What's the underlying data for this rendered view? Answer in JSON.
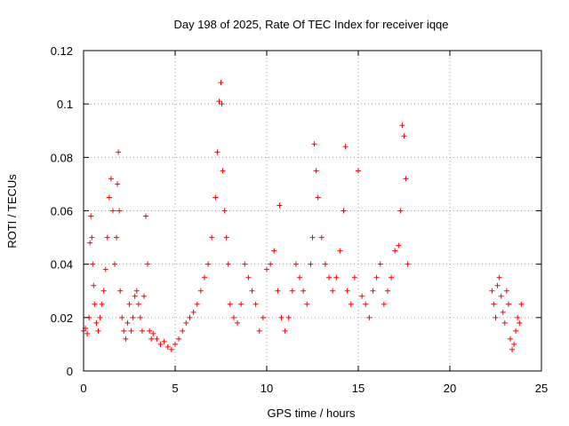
{
  "chart_data": {
    "type": "scatter",
    "title": "Day 198 of 2025, Rate Of TEC Index for receiver iqqe",
    "xlabel": "GPS time / hours",
    "ylabel": "ROTI / TECUs",
    "xlim": [
      0,
      25
    ],
    "ylim": [
      0,
      0.12
    ],
    "xticks": [
      0,
      5,
      10,
      15,
      20,
      25
    ],
    "xtick_labels": [
      "0",
      "5",
      "10",
      "15",
      "20",
      "25"
    ],
    "yticks": [
      0,
      0.02,
      0.04,
      0.06,
      0.08,
      0.1,
      0.12
    ],
    "ytick_labels": [
      "0",
      "0.02",
      "0.04",
      "0.06",
      "0.08",
      "0.1",
      "0.12"
    ],
    "grid": true,
    "legend": "none",
    "marker": "plus",
    "color": "#ff0000",
    "series": [
      {
        "x": [
          0.0,
          0.1,
          0.2,
          0.3,
          0.35,
          0.4,
          0.45,
          0.5,
          0.55,
          0.6,
          0.7,
          0.8,
          0.9,
          1.0,
          1.1,
          1.2,
          1.3,
          1.4,
          1.5,
          1.6,
          1.7,
          1.8,
          1.85,
          1.9,
          1.95,
          2.0,
          2.1,
          2.2,
          2.3,
          2.4,
          2.5,
          2.6,
          2.7,
          2.8,
          2.9,
          3.0,
          3.1,
          3.2,
          3.3,
          3.4,
          3.5,
          3.6,
          3.7,
          3.8,
          4.0,
          4.2,
          4.4,
          4.6,
          4.8,
          5.0,
          5.2,
          5.4,
          5.6,
          5.8,
          6.0,
          6.2,
          6.4,
          6.6,
          6.8,
          7.0,
          7.2,
          7.3,
          7.4,
          7.5,
          7.55,
          7.6,
          7.7,
          7.8,
          7.9,
          8.0,
          8.2,
          8.4,
          8.6,
          8.8,
          9.0,
          9.2,
          9.4,
          9.6,
          9.8,
          10.0,
          10.2,
          10.4,
          10.6,
          10.7,
          10.8,
          11.0,
          11.2,
          11.4,
          11.6,
          11.8,
          12.0,
          12.2,
          12.4,
          12.5,
          12.6,
          12.7,
          12.8,
          13.0,
          13.2,
          13.4,
          13.6,
          13.8,
          14.0,
          14.2,
          14.3,
          14.4,
          14.6,
          14.8,
          15.0,
          15.2,
          15.4,
          15.6,
          15.8,
          16.0,
          16.2,
          16.4,
          16.6,
          16.8,
          17.0,
          17.2,
          17.3,
          17.4,
          17.5,
          17.6,
          17.7
        ],
        "y": [
          0.015,
          0.016,
          0.014,
          0.02,
          0.048,
          0.058,
          0.05,
          0.04,
          0.032,
          0.025,
          0.018,
          0.015,
          0.02,
          0.025,
          0.03,
          0.038,
          0.05,
          0.065,
          0.072,
          0.06,
          0.04,
          0.05,
          0.07,
          0.082,
          0.06,
          0.03,
          0.02,
          0.015,
          0.012,
          0.018,
          0.025,
          0.015,
          0.02,
          0.028,
          0.03,
          0.025,
          0.02,
          0.015,
          0.028,
          0.058,
          0.04,
          0.015,
          0.012,
          0.014,
          0.012,
          0.01,
          0.011,
          0.009,
          0.008,
          0.01,
          0.012,
          0.015,
          0.018,
          0.02,
          0.022,
          0.025,
          0.03,
          0.035,
          0.04,
          0.05,
          0.065,
          0.082,
          0.101,
          0.108,
          0.1,
          0.075,
          0.06,
          0.05,
          0.04,
          0.025,
          0.02,
          0.018,
          0.025,
          0.04,
          0.035,
          0.03,
          0.025,
          0.015,
          0.02,
          0.038,
          0.04,
          0.045,
          0.03,
          0.062,
          0.02,
          0.015,
          0.02,
          0.03,
          0.04,
          0.035,
          0.03,
          0.025,
          0.04,
          0.05,
          0.085,
          0.075,
          0.065,
          0.05,
          0.04,
          0.035,
          0.03,
          0.035,
          0.045,
          0.06,
          0.084,
          0.03,
          0.025,
          0.035,
          0.075,
          0.028,
          0.025,
          0.02,
          0.03,
          0.035,
          0.04,
          0.025,
          0.03,
          0.035,
          0.045,
          0.047,
          0.06,
          0.092,
          0.088,
          0.072,
          0.04
        ]
      },
      {
        "x": [
          22.3,
          22.4,
          22.5,
          22.6,
          22.7,
          22.8,
          22.9,
          23.0,
          23.1,
          23.2,
          23.3,
          23.4,
          23.5,
          23.6,
          23.7,
          23.8,
          23.9
        ],
        "y": [
          0.03,
          0.025,
          0.02,
          0.032,
          0.035,
          0.028,
          0.022,
          0.018,
          0.03,
          0.025,
          0.012,
          0.008,
          0.01,
          0.015,
          0.02,
          0.018,
          0.025
        ]
      }
    ]
  }
}
